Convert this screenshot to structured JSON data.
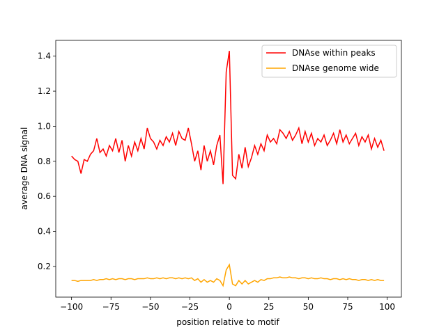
{
  "chart_data": {
    "type": "line",
    "xlabel": "position relative to motif",
    "ylabel": "average DNA signal",
    "x": [
      -100,
      -98,
      -96,
      -94,
      -92,
      -90,
      -88,
      -86,
      -84,
      -82,
      -80,
      -78,
      -76,
      -74,
      -72,
      -70,
      -68,
      -66,
      -64,
      -62,
      -60,
      -58,
      -56,
      -54,
      -52,
      -50,
      -48,
      -46,
      -44,
      -42,
      -40,
      -38,
      -36,
      -34,
      -32,
      -30,
      -28,
      -26,
      -24,
      -22,
      -20,
      -18,
      -16,
      -14,
      -12,
      -10,
      -8,
      -6,
      -4,
      -2,
      0,
      2,
      4,
      6,
      8,
      10,
      12,
      14,
      16,
      18,
      20,
      22,
      24,
      26,
      28,
      30,
      32,
      34,
      36,
      38,
      40,
      42,
      44,
      46,
      48,
      50,
      52,
      54,
      56,
      58,
      60,
      62,
      64,
      66,
      68,
      70,
      72,
      74,
      76,
      78,
      80,
      82,
      84,
      86,
      88,
      90,
      92,
      94,
      96,
      98
    ],
    "series": [
      {
        "name": "DNAse within peaks",
        "color": "#ff0000",
        "values": [
          0.83,
          0.81,
          0.8,
          0.73,
          0.81,
          0.8,
          0.84,
          0.86,
          0.93,
          0.85,
          0.87,
          0.83,
          0.89,
          0.86,
          0.93,
          0.85,
          0.92,
          0.8,
          0.89,
          0.83,
          0.91,
          0.86,
          0.93,
          0.87,
          0.99,
          0.93,
          0.91,
          0.87,
          0.92,
          0.89,
          0.94,
          0.91,
          0.96,
          0.89,
          0.97,
          0.93,
          0.92,
          0.99,
          0.9,
          0.8,
          0.86,
          0.75,
          0.89,
          0.8,
          0.86,
          0.78,
          0.89,
          0.95,
          0.67,
          1.31,
          1.43,
          0.72,
          0.7,
          0.84,
          0.76,
          0.88,
          0.77,
          0.82,
          0.89,
          0.84,
          0.9,
          0.86,
          0.95,
          0.91,
          0.93,
          0.9,
          0.98,
          0.96,
          0.93,
          0.97,
          0.92,
          0.95,
          0.99,
          0.9,
          0.97,
          0.91,
          0.96,
          0.89,
          0.93,
          0.91,
          0.95,
          0.89,
          0.92,
          0.96,
          0.9,
          0.98,
          0.91,
          0.95,
          0.9,
          0.93,
          0.96,
          0.89,
          0.94,
          0.91,
          0.95,
          0.87,
          0.93,
          0.88,
          0.92,
          0.86
        ]
      },
      {
        "name": "DNAse genome wide",
        "color": "#ffa500",
        "values": [
          0.12,
          0.12,
          0.115,
          0.12,
          0.12,
          0.12,
          0.12,
          0.125,
          0.12,
          0.125,
          0.125,
          0.13,
          0.125,
          0.13,
          0.125,
          0.13,
          0.13,
          0.125,
          0.13,
          0.13,
          0.125,
          0.13,
          0.13,
          0.13,
          0.135,
          0.13,
          0.13,
          0.135,
          0.13,
          0.135,
          0.13,
          0.135,
          0.135,
          0.13,
          0.135,
          0.13,
          0.135,
          0.13,
          0.135,
          0.12,
          0.13,
          0.11,
          0.125,
          0.11,
          0.12,
          0.11,
          0.13,
          0.12,
          0.09,
          0.18,
          0.21,
          0.1,
          0.09,
          0.12,
          0.1,
          0.12,
          0.1,
          0.11,
          0.12,
          0.11,
          0.125,
          0.12,
          0.13,
          0.13,
          0.135,
          0.135,
          0.14,
          0.135,
          0.135,
          0.14,
          0.135,
          0.135,
          0.13,
          0.135,
          0.135,
          0.13,
          0.135,
          0.13,
          0.13,
          0.135,
          0.13,
          0.13,
          0.125,
          0.13,
          0.13,
          0.125,
          0.13,
          0.125,
          0.13,
          0.125,
          0.125,
          0.12,
          0.125,
          0.125,
          0.12,
          0.125,
          0.12,
          0.125,
          0.12,
          0.12
        ]
      }
    ],
    "xlim": [
      -110,
      109
    ],
    "ylim": [
      0.025,
      1.49
    ],
    "xticks": [
      {
        "value": -100,
        "label": "−100"
      },
      {
        "value": -75,
        "label": "−75"
      },
      {
        "value": -50,
        "label": "−50"
      },
      {
        "value": -25,
        "label": "−25"
      },
      0,
      25,
      50,
      75,
      100
    ],
    "yticks": [
      0.2,
      0.4,
      0.6,
      0.8,
      {
        "value": 1,
        "label": "1.0"
      },
      1.2,
      1.4
    ],
    "legend": "upper right"
  }
}
